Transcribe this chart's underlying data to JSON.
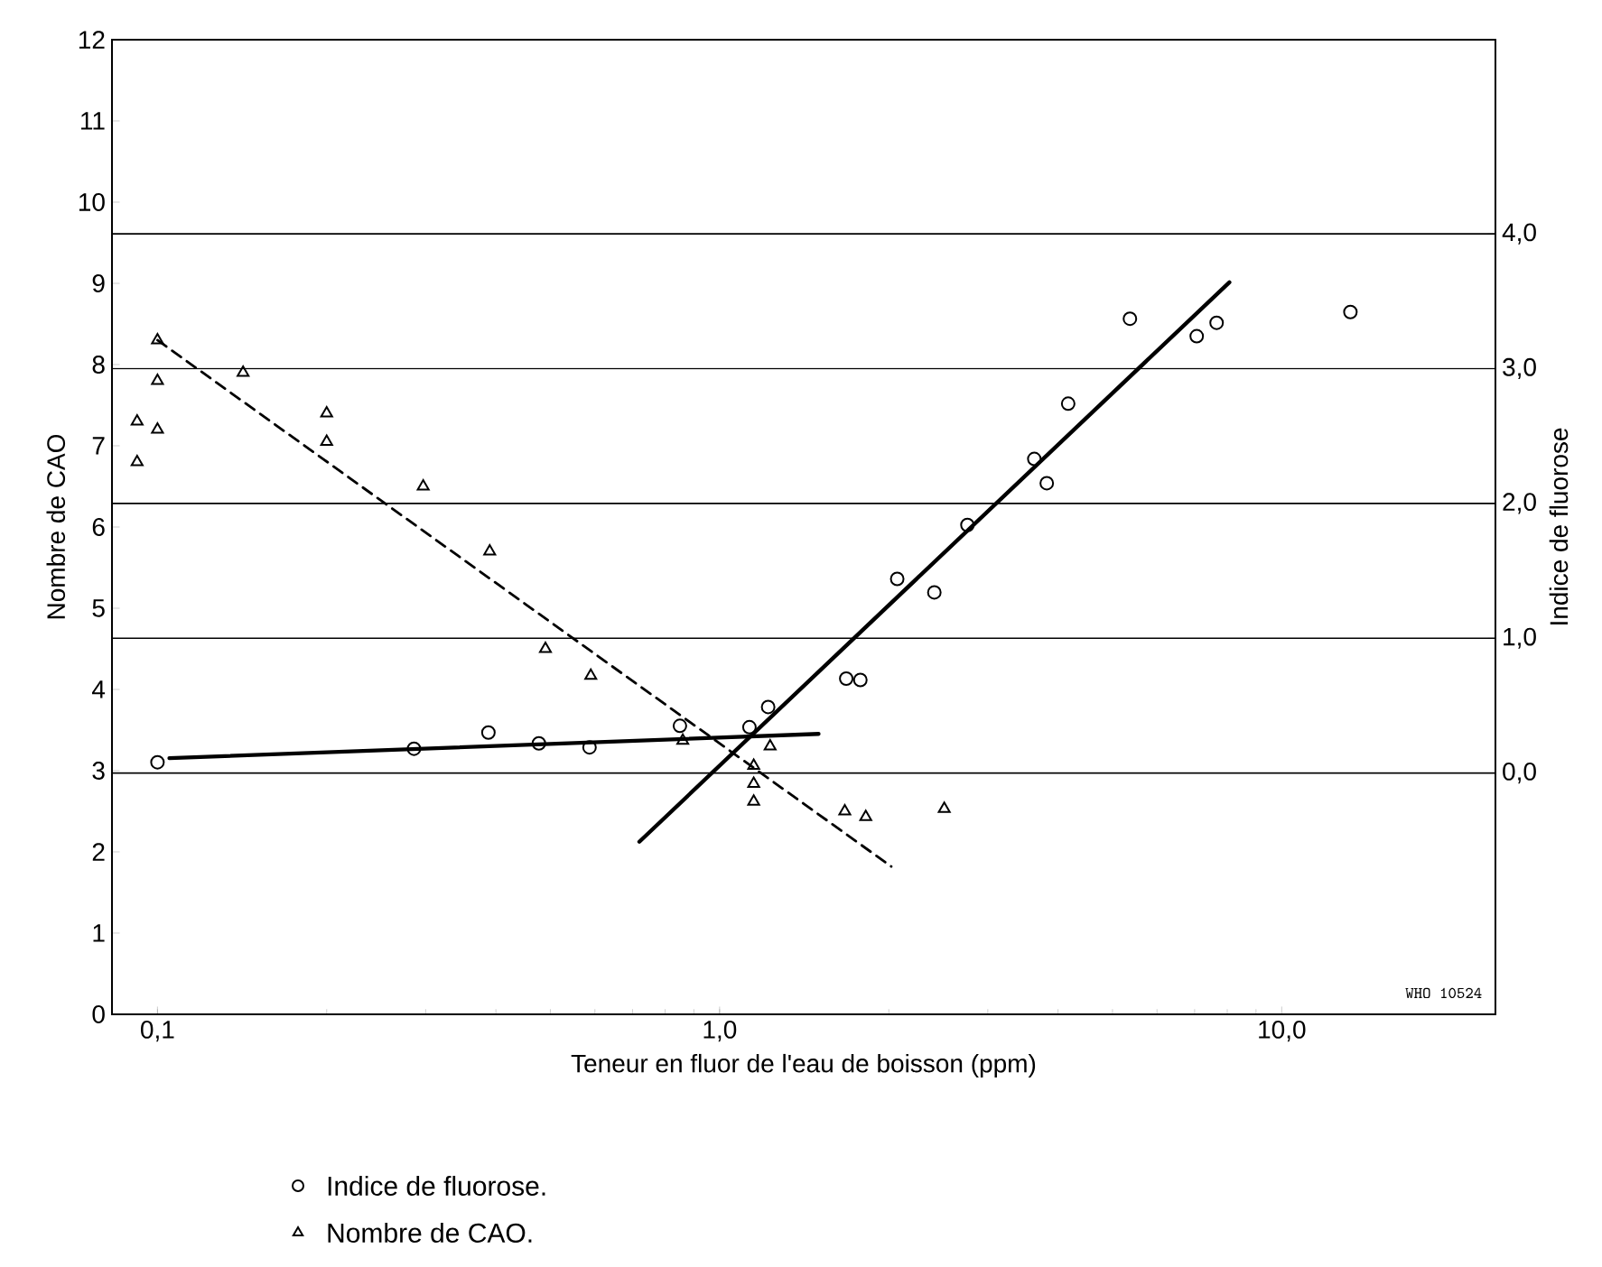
{
  "chart_data": {
    "type": "scatter",
    "xlabel": "Teneur en fluor de l'eau de boisson (ppm)",
    "ylabel": "Nombre de CAO",
    "y2label": "Indice de fluorose",
    "log": "x",
    "xlim": [
      0.083,
      24
    ],
    "xticks": [
      {
        "value": 0.1,
        "label": "0,1"
      },
      {
        "value": 1,
        "label": "1,0"
      },
      {
        "value": 10,
        "label": "10,0"
      }
    ],
    "ylim": [
      0,
      12
    ],
    "yticks": [
      0,
      1,
      2,
      3,
      4,
      5,
      6,
      7,
      8,
      9,
      10,
      11,
      12
    ],
    "y2lim": [
      -1.79,
      5.44
    ],
    "y2ticks": [
      {
        "value": 0,
        "label": "0,0"
      },
      {
        "value": 1,
        "label": "1,0"
      },
      {
        "value": 2,
        "label": "2,0"
      },
      {
        "value": 3,
        "label": "3,0"
      },
      {
        "value": 4,
        "label": "4,0"
      }
    ],
    "ref_lines": [
      {
        "axis": "y2",
        "value": 0
      },
      {
        "axis": "y2",
        "value": 1
      },
      {
        "axis": "y2",
        "value": 2
      },
      {
        "axis": "y2",
        "value": 3
      },
      {
        "axis": "y2",
        "value": 4
      }
    ],
    "annotations": [
      "WHO 10524"
    ],
    "legend": "bottom",
    "grid": false,
    "series": [
      {
        "name": "Indice de fluorose.",
        "axis": "y2",
        "marker": "circle",
        "color": "#000000",
        "x": [
          0.1,
          0.286,
          0.388,
          0.477,
          0.587,
          0.85,
          1.13,
          1.22,
          1.68,
          1.78,
          2.07,
          2.41,
          2.76,
          3.63,
          3.82,
          4.17,
          5.37,
          7.06,
          7.66,
          13.25
        ],
        "values": [
          0.08,
          0.18,
          0.3,
          0.22,
          0.19,
          0.35,
          0.34,
          0.49,
          0.7,
          0.69,
          1.44,
          1.34,
          1.84,
          2.33,
          2.15,
          2.74,
          3.37,
          3.24,
          3.34,
          3.42
        ]
      },
      {
        "name": "Nombre de CAO.",
        "marker": "triangle",
        "color": "#000000",
        "x": [
          0.092,
          0.092,
          0.1,
          0.1,
          0.1,
          0.142,
          0.2,
          0.2,
          0.297,
          0.39,
          0.49,
          0.59,
          0.86,
          1.15,
          1.15,
          1.15,
          1.23,
          1.67,
          1.82,
          2.51
        ],
        "values": [
          6.8,
          7.3,
          8.3,
          7.8,
          7.2,
          7.9,
          7.4,
          7.05,
          6.5,
          5.7,
          4.5,
          4.17,
          3.37,
          3.06,
          2.84,
          2.62,
          3.3,
          2.5,
          2.43,
          2.53
        ]
      },
      {
        "type": "line",
        "marker": "none",
        "line_style": "dashed",
        "color": "#000000",
        "x": [
          0.1,
          2.02
        ],
        "values": [
          8.3,
          1.82
        ]
      },
      {
        "type": "line",
        "axis": "y2",
        "marker": "none",
        "line_style": "solid",
        "color": "#000000",
        "x": [
          0.105,
          1.5
        ],
        "values": [
          0.11,
          0.29
        ]
      },
      {
        "type": "line",
        "axis": "y2",
        "marker": "none",
        "line_style": "solid",
        "color": "#000000",
        "x": [
          0.72,
          8.07
        ],
        "values": [
          -0.51,
          3.64
        ]
      }
    ]
  }
}
